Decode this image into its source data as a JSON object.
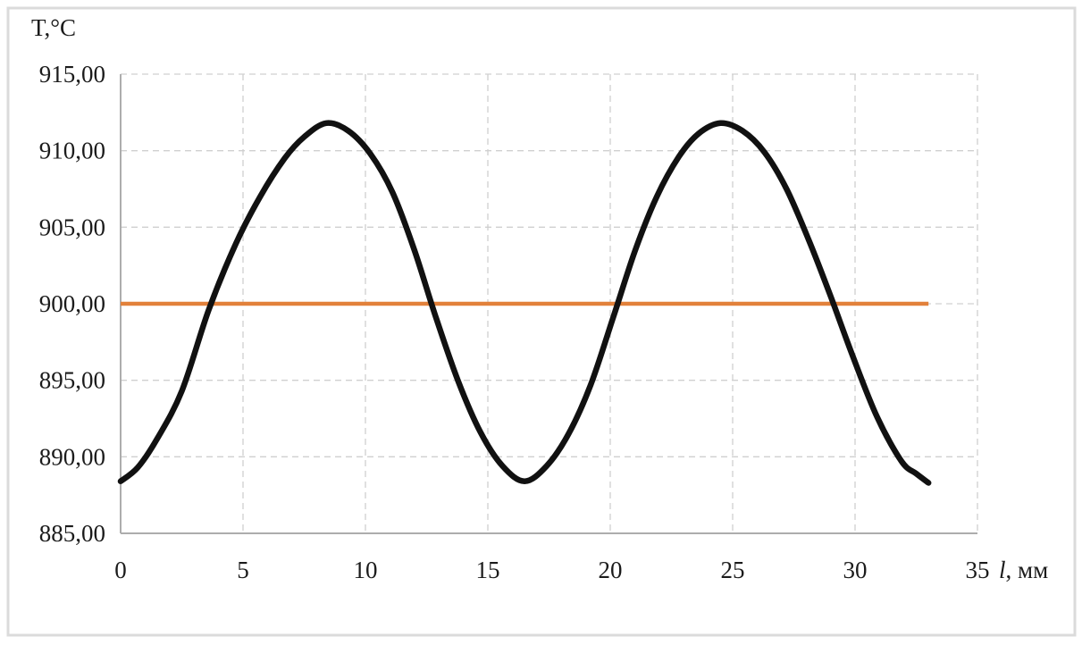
{
  "page": {
    "background": "#ffffff",
    "frame_color": "#dbdbdb"
  },
  "chart_data": {
    "type": "line",
    "title": "",
    "ylabel": "T,°C",
    "xlabel_italic": "l",
    "xlabel_rest": ", мм",
    "xlim": [
      0,
      35
    ],
    "ylim": [
      885,
      915
    ],
    "grid": "dashed, both axes",
    "legend_position": "none",
    "colors": {
      "curve": "#111111",
      "critical_line": "#e2813b",
      "gridline": "#d0d0d0",
      "axis_line": "#adadad",
      "text": "#1b1b1b"
    },
    "y_ticks": [
      {
        "value": 915,
        "label": "915,00"
      },
      {
        "value": 910,
        "label": "910,00"
      },
      {
        "value": 905,
        "label": "905,00"
      },
      {
        "value": 900,
        "label": "900,00"
      },
      {
        "value": 895,
        "label": "895,00"
      },
      {
        "value": 890,
        "label": "890,00"
      },
      {
        "value": 885,
        "label": "885,00"
      }
    ],
    "x_ticks": [
      {
        "value": 0,
        "label": "0"
      },
      {
        "value": 5,
        "label": "5"
      },
      {
        "value": 10,
        "label": "10"
      },
      {
        "value": 15,
        "label": "15"
      },
      {
        "value": 20,
        "label": "20"
      },
      {
        "value": 25,
        "label": "25"
      },
      {
        "value": 30,
        "label": "30"
      },
      {
        "value": 35,
        "label": "35"
      }
    ],
    "series": [
      {
        "name": "temperature-profile",
        "color": "#111111",
        "width": 6.5,
        "smooth": true,
        "points": [
          [
            0,
            888.4
          ],
          [
            0.7,
            889.3
          ],
          [
            1.5,
            891.2
          ],
          [
            2.5,
            894.3
          ],
          [
            3.6,
            899.6
          ],
          [
            4.7,
            903.9
          ],
          [
            5.7,
            907.0
          ],
          [
            6.7,
            909.5
          ],
          [
            7.5,
            910.9
          ],
          [
            8.4,
            911.8
          ],
          [
            9.3,
            911.3
          ],
          [
            10.2,
            909.8
          ],
          [
            11.1,
            907.3
          ],
          [
            12.0,
            903.5
          ],
          [
            12.9,
            899.0
          ],
          [
            13.8,
            894.9
          ],
          [
            14.7,
            891.6
          ],
          [
            15.6,
            889.4
          ],
          [
            16.5,
            888.4
          ],
          [
            17.4,
            889.4
          ],
          [
            18.3,
            891.5
          ],
          [
            19.2,
            894.7
          ],
          [
            20.1,
            899.0
          ],
          [
            21.0,
            903.4
          ],
          [
            21.9,
            907.0
          ],
          [
            22.8,
            909.6
          ],
          [
            23.6,
            911.1
          ],
          [
            24.5,
            911.8
          ],
          [
            25.4,
            911.3
          ],
          [
            26.3,
            909.9
          ],
          [
            27.2,
            907.5
          ],
          [
            28.1,
            904.2
          ],
          [
            29.0,
            900.5
          ],
          [
            29.9,
            896.6
          ],
          [
            30.9,
            892.6
          ],
          [
            31.9,
            889.7
          ],
          [
            32.5,
            888.9
          ],
          [
            33,
            888.3
          ]
        ]
      },
      {
        "name": "critical-temperature-line",
        "color": "#e2813b",
        "width": 4.5,
        "smooth": false,
        "points": [
          [
            0,
            900
          ],
          [
            33,
            900
          ]
        ]
      }
    ]
  }
}
